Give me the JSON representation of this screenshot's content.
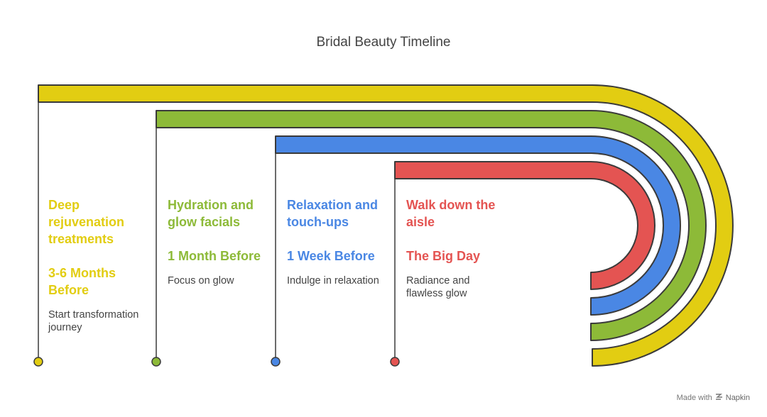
{
  "title": "Bridal Beauty Timeline",
  "colors": {
    "yellow": "#e2cd12",
    "green": "#8dba38",
    "blue": "#4a87e4",
    "red": "#e45452",
    "outline": "#3a3a3a"
  },
  "stages": [
    {
      "heading": "Deep rejuvenation treatments",
      "when": "3-6 Months Before",
      "description": "Start transformation journey",
      "color": "#e2cd12"
    },
    {
      "heading": "Hydration and glow facials",
      "when": "1 Month Before",
      "description": "Focus on glow",
      "color": "#8dba38"
    },
    {
      "heading": "Relaxation and touch-ups",
      "when": "1 Week Before",
      "description": "Indulge in relaxation",
      "color": "#4a87e4"
    },
    {
      "heading": "Walk down the aisle",
      "when": "The Big Day",
      "description": "Radiance and flawless glow",
      "color": "#e45452"
    }
  ],
  "footer": {
    "made_with": "Made with",
    "brand": "Napkin",
    "brand_icon": "napkin-logo-icon"
  }
}
